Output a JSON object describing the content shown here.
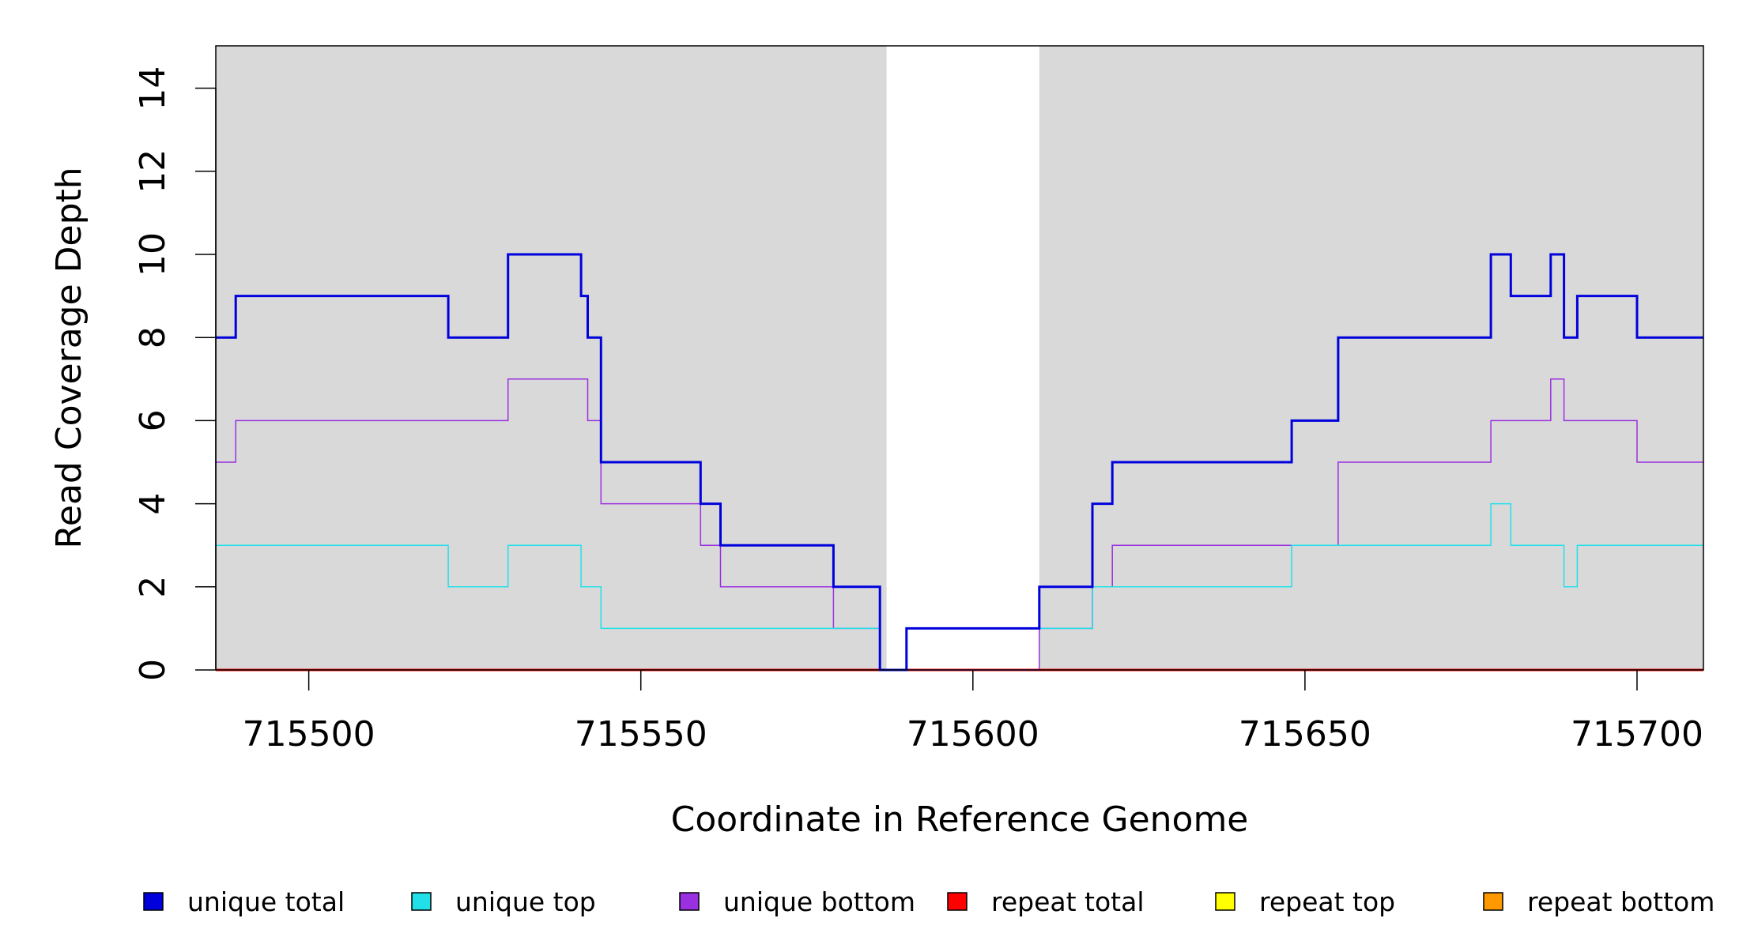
{
  "chart_data": {
    "type": "line",
    "xlabel": "Coordinate in Reference Genome",
    "ylabel": "Read Coverage Depth",
    "xlim": [
      715486,
      715710
    ],
    "ylim": [
      0,
      15
    ],
    "x_ticks": [
      715500,
      715550,
      715600,
      715650,
      715700
    ],
    "x_tick_labels": [
      "715500",
      "715550",
      "715600",
      "715650",
      "715700"
    ],
    "y_ticks": [
      0,
      2,
      4,
      6,
      8,
      10,
      12,
      14
    ],
    "y_tick_labels": [
      "0",
      "2",
      "4",
      "6",
      "8",
      "10",
      "12",
      "14"
    ],
    "background_color": "#d9d9d9",
    "gap_region": [
      715587,
      715610
    ],
    "gap_color": "#ffffff",
    "legend_position": "bottom",
    "series": [
      {
        "name": "unique total",
        "color": "#0000dd",
        "points": [
          [
            715486,
            8
          ],
          [
            715489,
            8
          ],
          [
            715489,
            9
          ],
          [
            715521,
            9
          ],
          [
            715521,
            8
          ],
          [
            715530,
            8
          ],
          [
            715530,
            10
          ],
          [
            715541,
            10
          ],
          [
            715541,
            9
          ],
          [
            715542,
            9
          ],
          [
            715542,
            8
          ],
          [
            715544,
            8
          ],
          [
            715544,
            5
          ],
          [
            715559,
            5
          ],
          [
            715559,
            4
          ],
          [
            715562,
            4
          ],
          [
            715562,
            3
          ],
          [
            715579,
            3
          ],
          [
            715579,
            2
          ],
          [
            715586,
            2
          ],
          [
            715586,
            0
          ],
          [
            715590,
            0
          ],
          [
            715590,
            1
          ],
          [
            715610,
            1
          ],
          [
            715610,
            2
          ],
          [
            715618,
            2
          ],
          [
            715618,
            4
          ],
          [
            715621,
            4
          ],
          [
            715621,
            5
          ],
          [
            715648,
            5
          ],
          [
            715648,
            6
          ],
          [
            715655,
            6
          ],
          [
            715655,
            8
          ],
          [
            715678,
            8
          ],
          [
            715678,
            10
          ],
          [
            715681,
            10
          ],
          [
            715681,
            9
          ],
          [
            715687,
            9
          ],
          [
            715687,
            10
          ],
          [
            715689,
            10
          ],
          [
            715689,
            8
          ],
          [
            715691,
            8
          ],
          [
            715691,
            9
          ],
          [
            715700,
            9
          ],
          [
            715700,
            8
          ],
          [
            715710,
            8
          ]
        ]
      },
      {
        "name": "unique top",
        "color": "#22e0e8",
        "points": [
          [
            715486,
            3
          ],
          [
            715521,
            3
          ],
          [
            715521,
            2
          ],
          [
            715530,
            2
          ],
          [
            715530,
            3
          ],
          [
            715541,
            3
          ],
          [
            715541,
            2
          ],
          [
            715544,
            2
          ],
          [
            715544,
            1
          ],
          [
            715579,
            1
          ],
          [
            715586,
            1
          ],
          [
            715586,
            0
          ],
          [
            715590,
            0
          ],
          [
            715590,
            1
          ],
          [
            715610,
            1
          ],
          [
            715618,
            1
          ],
          [
            715618,
            2
          ],
          [
            715648,
            2
          ],
          [
            715648,
            3
          ],
          [
            715678,
            3
          ],
          [
            715678,
            4
          ],
          [
            715681,
            4
          ],
          [
            715681,
            3
          ],
          [
            715689,
            3
          ],
          [
            715689,
            2
          ],
          [
            715691,
            2
          ],
          [
            715691,
            3
          ],
          [
            715710,
            3
          ]
        ]
      },
      {
        "name": "unique bottom",
        "color": "#9b30e0",
        "points": [
          [
            715486,
            5
          ],
          [
            715489,
            5
          ],
          [
            715489,
            6
          ],
          [
            715530,
            6
          ],
          [
            715530,
            7
          ],
          [
            715542,
            7
          ],
          [
            715542,
            6
          ],
          [
            715544,
            6
          ],
          [
            715544,
            4
          ],
          [
            715559,
            4
          ],
          [
            715559,
            3
          ],
          [
            715562,
            3
          ],
          [
            715562,
            2
          ],
          [
            715579,
            2
          ],
          [
            715579,
            1
          ],
          [
            715586,
            1
          ],
          [
            715586,
            0
          ],
          [
            715610,
            0
          ],
          [
            715610,
            1
          ],
          [
            715618,
            1
          ],
          [
            715618,
            2
          ],
          [
            715621,
            2
          ],
          [
            715621,
            3
          ],
          [
            715655,
            3
          ],
          [
            715655,
            5
          ],
          [
            715678,
            5
          ],
          [
            715678,
            6
          ],
          [
            715687,
            6
          ],
          [
            715687,
            7
          ],
          [
            715689,
            7
          ],
          [
            715689,
            6
          ],
          [
            715700,
            6
          ],
          [
            715700,
            5
          ],
          [
            715710,
            5
          ]
        ]
      },
      {
        "name": "repeat total",
        "color": "#ff0000",
        "points": [
          [
            715486,
            0
          ],
          [
            715710,
            0
          ]
        ]
      },
      {
        "name": "repeat top",
        "color": "#ffff00",
        "points": [
          [
            715486,
            0
          ],
          [
            715710,
            0
          ]
        ]
      },
      {
        "name": "repeat bottom",
        "color": "#ff9900",
        "points": [
          [
            715486,
            0
          ],
          [
            715710,
            0
          ]
        ]
      }
    ]
  }
}
